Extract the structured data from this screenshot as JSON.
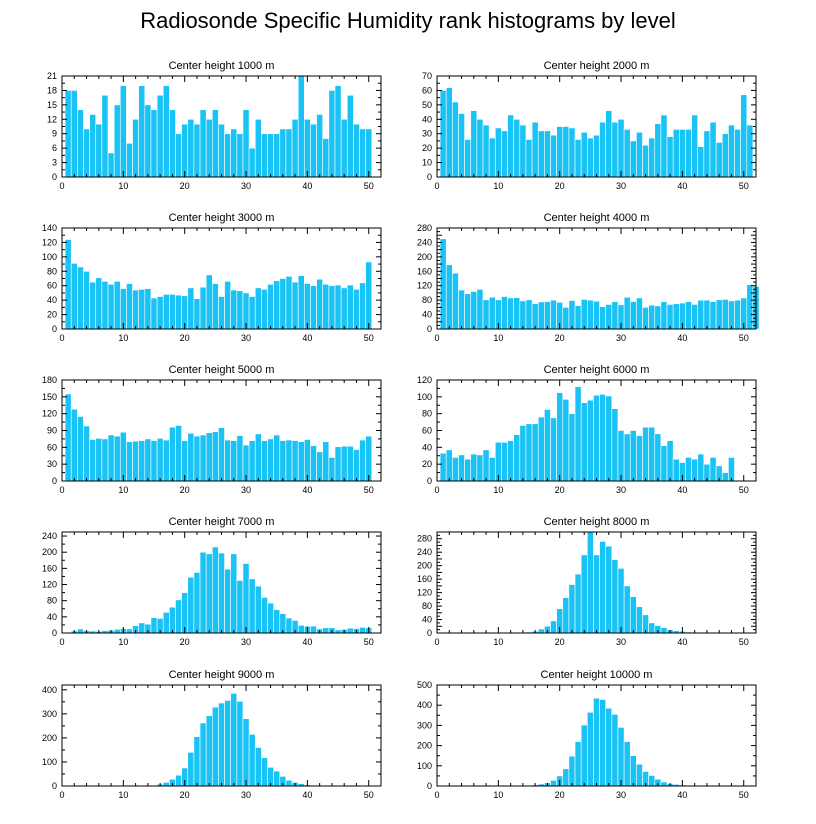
{
  "title": "Radiosonde Specific Humidity rank histograms by level",
  "colors": {
    "bar": "#19C3F5",
    "axis": "#000000"
  },
  "chart_data": [
    {
      "type": "bar",
      "title": "Center height 1000 m",
      "xlim": [
        0,
        52
      ],
      "xticks": [
        0,
        10,
        20,
        30,
        40,
        50
      ],
      "ylim": [
        0,
        21
      ],
      "yticks": [
        0,
        3,
        6,
        9,
        12,
        15,
        18,
        21
      ],
      "values": [
        18,
        18,
        14,
        10,
        13,
        11,
        17,
        5,
        15,
        19,
        7,
        12,
        19,
        15,
        14,
        17,
        19,
        14,
        9,
        11,
        12,
        11,
        14,
        12,
        14,
        11,
        9,
        10,
        9,
        14,
        6,
        12,
        9,
        9,
        9,
        10,
        10,
        12,
        21,
        12,
        11,
        13,
        8,
        18,
        19,
        12,
        17,
        11,
        10,
        10
      ]
    },
    {
      "type": "bar",
      "title": "Center height 2000 m",
      "xlim": [
        0,
        52
      ],
      "xticks": [
        0,
        10,
        20,
        30,
        40,
        50
      ],
      "ylim": [
        0,
        70
      ],
      "yticks": [
        0,
        10,
        20,
        30,
        40,
        50,
        60,
        70
      ],
      "values": [
        60,
        62,
        52,
        44,
        26,
        46,
        40,
        36,
        27,
        34,
        32,
        43,
        40,
        36,
        26,
        38,
        32,
        32,
        29,
        35,
        35,
        34,
        26,
        31,
        27,
        29,
        38,
        46,
        38,
        40,
        33,
        25,
        31,
        22,
        27,
        37,
        43,
        28,
        33,
        33,
        33,
        43,
        21,
        32,
        38,
        24,
        30,
        36,
        33,
        57,
        36
      ]
    },
    {
      "type": "bar",
      "title": "Center height 3000 m",
      "xlim": [
        0,
        52
      ],
      "xticks": [
        0,
        10,
        20,
        30,
        40,
        50
      ],
      "ylim": [
        0,
        140
      ],
      "yticks": [
        0,
        20,
        40,
        60,
        80,
        100,
        120,
        140
      ],
      "values": [
        124,
        91,
        86,
        80,
        65,
        71,
        66,
        62,
        66,
        56,
        63,
        54,
        55,
        56,
        43,
        45,
        48,
        48,
        47,
        46,
        57,
        42,
        58,
        75,
        63,
        45,
        66,
        54,
        53,
        50,
        45,
        57,
        55,
        62,
        67,
        70,
        73,
        65,
        74,
        63,
        60,
        69,
        62,
        60,
        61,
        57,
        61,
        55,
        64,
        93
      ]
    },
    {
      "type": "bar",
      "title": "Center height 4000 m",
      "xlim": [
        0,
        52
      ],
      "xticks": [
        0,
        10,
        20,
        30,
        40,
        50
      ],
      "ylim": [
        0,
        280
      ],
      "yticks": [
        0,
        20,
        40,
        60,
        80,
        100,
        120,
        140,
        160,
        180,
        200,
        220,
        240,
        260,
        280
      ],
      "yticklabels": [
        "0",
        "",
        "40",
        "",
        "80",
        "",
        "120",
        "",
        "160",
        "",
        "200",
        "",
        "240",
        "",
        "280"
      ],
      "values": [
        250,
        178,
        155,
        108,
        98,
        104,
        110,
        81,
        88,
        81,
        90,
        86,
        87,
        78,
        81,
        70,
        75,
        76,
        80,
        74,
        60,
        79,
        65,
        82,
        80,
        77,
        62,
        68,
        76,
        67,
        88,
        76,
        86,
        60,
        66,
        64,
        76,
        68,
        70,
        72,
        76,
        68,
        80,
        80,
        76,
        81,
        82,
        78,
        80,
        86,
        123,
        118
      ]
    },
    {
      "type": "bar",
      "title": "Center height 5000 m",
      "xlim": [
        0,
        52
      ],
      "xticks": [
        0,
        10,
        20,
        30,
        40,
        50
      ],
      "ylim": [
        0,
        180
      ],
      "yticks": [
        0,
        30,
        60,
        90,
        120,
        150,
        180
      ],
      "values": [
        155,
        128,
        115,
        98,
        74,
        76,
        75,
        82,
        80,
        87,
        70,
        71,
        72,
        75,
        72,
        76,
        73,
        96,
        99,
        72,
        85,
        80,
        82,
        86,
        88,
        95,
        73,
        72,
        81,
        64,
        72,
        84,
        72,
        75,
        82,
        72,
        73,
        72,
        70,
        74,
        63,
        52,
        70,
        42,
        61,
        62,
        62,
        56,
        73,
        80
      ]
    },
    {
      "type": "bar",
      "title": "Center height 6000 m",
      "xlim": [
        0,
        52
      ],
      "xticks": [
        0,
        10,
        20,
        30,
        40,
        50
      ],
      "ylim": [
        0,
        120
      ],
      "yticks": [
        0,
        20,
        40,
        60,
        80,
        100,
        120
      ],
      "values": [
        33,
        37,
        28,
        31,
        26,
        32,
        31,
        37,
        28,
        46,
        46,
        48,
        55,
        66,
        68,
        68,
        76,
        85,
        75,
        105,
        97,
        80,
        112,
        93,
        96,
        102,
        103,
        101,
        86,
        60,
        56,
        60,
        54,
        64,
        64,
        56,
        42,
        48,
        26,
        22,
        28,
        26,
        32,
        20,
        28,
        18,
        10,
        28
      ]
    },
    {
      "type": "bar",
      "title": "Center height 7000 m",
      "xlim": [
        0,
        52
      ],
      "xticks": [
        0,
        10,
        20,
        30,
        40,
        50
      ],
      "ylim": [
        0,
        250
      ],
      "yticks": [
        0,
        40,
        80,
        120,
        160,
        200,
        240
      ],
      "values": [
        2,
        5,
        10,
        6,
        5,
        4,
        6,
        7,
        9,
        11,
        10,
        18,
        25,
        22,
        38,
        36,
        51,
        64,
        82,
        100,
        138,
        150,
        200,
        196,
        213,
        198,
        158,
        196,
        130,
        172,
        134,
        116,
        88,
        74,
        58,
        48,
        37,
        31,
        19,
        17,
        17,
        10,
        13,
        13,
        8,
        9,
        12,
        11,
        14,
        13
      ]
    },
    {
      "type": "bar",
      "title": "Center height 8000 m",
      "xlim": [
        0,
        52
      ],
      "xticks": [
        0,
        10,
        20,
        30,
        40,
        50
      ],
      "ylim": [
        0,
        300
      ],
      "yticks": [
        0,
        20,
        40,
        60,
        80,
        100,
        120,
        140,
        160,
        180,
        200,
        220,
        240,
        260,
        280,
        300
      ],
      "yticklabels": [
        "0",
        "",
        "40",
        "",
        "80",
        "",
        "120",
        "",
        "160",
        "",
        "200",
        "",
        "240",
        "",
        "280",
        ""
      ],
      "values": [
        0,
        0,
        0,
        0,
        0,
        0,
        0,
        0,
        0,
        0,
        0,
        0,
        0,
        2,
        3,
        5,
        12,
        20,
        36,
        72,
        105,
        144,
        175,
        232,
        300,
        232,
        272,
        258,
        218,
        192,
        140,
        108,
        78,
        54,
        30,
        22,
        16,
        10,
        7,
        5,
        3,
        2,
        1,
        1,
        1,
        0,
        0,
        0,
        0,
        0,
        2,
        1
      ]
    },
    {
      "type": "bar",
      "title": "Center height 9000 m",
      "xlim": [
        0,
        52
      ],
      "xticks": [
        0,
        10,
        20,
        30,
        40,
        50
      ],
      "ylim": [
        0,
        420
      ],
      "yticks": [
        0,
        100,
        200,
        300,
        400
      ],
      "values": [
        0,
        0,
        0,
        0,
        0,
        0,
        0,
        0,
        0,
        0,
        0,
        0,
        0,
        1,
        3,
        8,
        15,
        28,
        45,
        75,
        140,
        205,
        262,
        292,
        328,
        345,
        356,
        385,
        352,
        280,
        215,
        160,
        118,
        78,
        62,
        40,
        24,
        15,
        10,
        5,
        3,
        2,
        1,
        1,
        0,
        0,
        0,
        0,
        0,
        0,
        0,
        0
      ]
    },
    {
      "type": "bar",
      "title": "Center height 10000 m",
      "xlim": [
        0,
        52
      ],
      "xticks": [
        0,
        10,
        20,
        30,
        40,
        50
      ],
      "ylim": [
        0,
        500
      ],
      "yticks": [
        0,
        100,
        200,
        300,
        400,
        500
      ],
      "values": [
        0,
        0,
        0,
        0,
        0,
        0,
        0,
        0,
        0,
        0,
        0,
        0,
        0,
        1,
        3,
        6,
        10,
        16,
        28,
        50,
        85,
        148,
        220,
        302,
        365,
        435,
        428,
        385,
        355,
        290,
        220,
        150,
        108,
        72,
        52,
        34,
        20,
        12,
        8,
        5,
        3,
        2,
        1,
        1,
        0,
        0,
        0,
        0,
        0,
        0,
        0,
        0
      ]
    }
  ]
}
